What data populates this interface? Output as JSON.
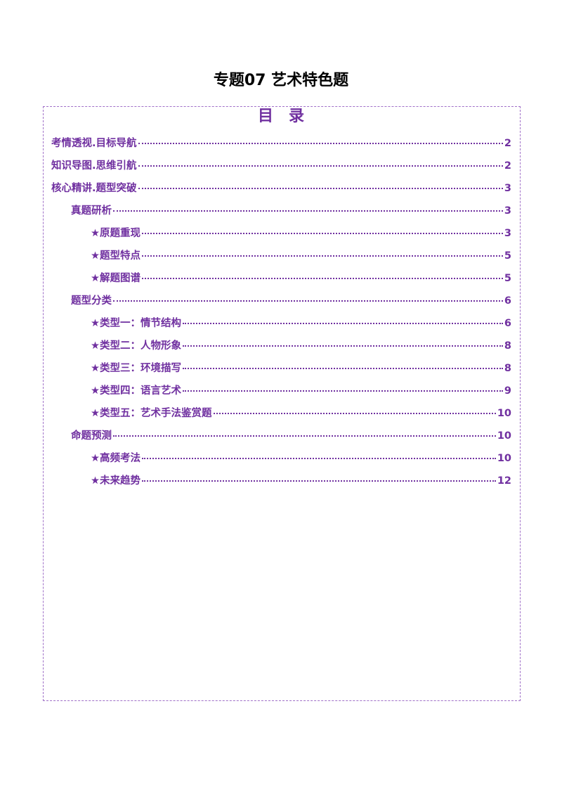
{
  "document": {
    "title": "专题07  艺术特色题",
    "toc_heading": "目录",
    "accent_color": "#7030A0",
    "toc": [
      {
        "level": 0,
        "label": "考情透视.目标导航",
        "page": "2"
      },
      {
        "level": 0,
        "label": "知识导图.思维引航",
        "page": "2"
      },
      {
        "level": 0,
        "label": "核心精讲.题型突破",
        "page": "3"
      },
      {
        "level": 1,
        "label": "真题研析",
        "page": "3"
      },
      {
        "level": 2,
        "label": "★原题重现",
        "page": "3"
      },
      {
        "level": 2,
        "label": "★题型特点",
        "page": "5"
      },
      {
        "level": 2,
        "label": "★解题图谱",
        "page": "5"
      },
      {
        "level": 1,
        "label": "题型分类",
        "page": "6"
      },
      {
        "level": 2,
        "label": "★类型一：情节结构",
        "page": "6"
      },
      {
        "level": 2,
        "label": "★类型二：人物形象",
        "page": "8"
      },
      {
        "level": 2,
        "label": "★类型三：环境描写",
        "page": "8"
      },
      {
        "level": 2,
        "label": "★类型四：语言艺术",
        "page": "9"
      },
      {
        "level": 2,
        "label": "★类型五：艺术手法鉴赏题",
        "page": "10"
      },
      {
        "level": 1,
        "label": "命题预测",
        "page": "10"
      },
      {
        "level": 2,
        "label": "★高频考法",
        "page": "10"
      },
      {
        "level": 2,
        "label": "★未来趋势",
        "page": "12"
      }
    ]
  }
}
